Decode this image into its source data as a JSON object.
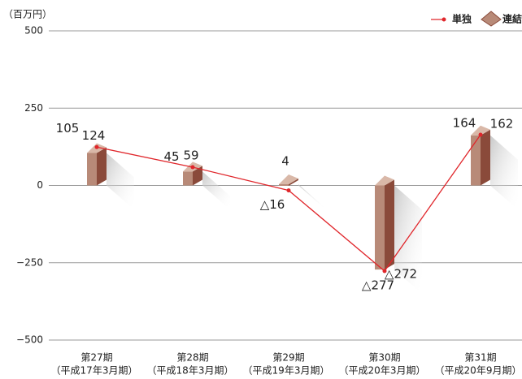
{
  "chart_data": {
    "type": "bar_line",
    "unit_label": "（百万円）",
    "categories": [
      "第27期",
      "第28期",
      "第29期",
      "第30期",
      "第31期"
    ],
    "periods": [
      "（平成17年3月期）",
      "（平成18年3月期）",
      "（平成19年3月期）",
      "（平成20年3月期）",
      "（平成20年9月期）"
    ],
    "series": [
      {
        "name": "単独",
        "type": "line",
        "color": "#e0262b",
        "values": [
          124,
          59,
          -16,
          -277,
          164
        ],
        "value_labels": [
          "124",
          "59",
          "△16",
          "△277",
          "164"
        ]
      },
      {
        "name": "連結",
        "type": "bar",
        "color": "#b88a78",
        "values": [
          105,
          45,
          4,
          -272,
          162
        ],
        "value_labels": [
          "105",
          "45",
          "4",
          "△272",
          "162"
        ]
      }
    ],
    "ylim": [
      -500,
      500
    ],
    "yticks": [
      500,
      250,
      0,
      {
        "value": -250,
        "label": "−250"
      },
      {
        "value": -500,
        "label": "−500"
      }
    ],
    "grid": true
  }
}
